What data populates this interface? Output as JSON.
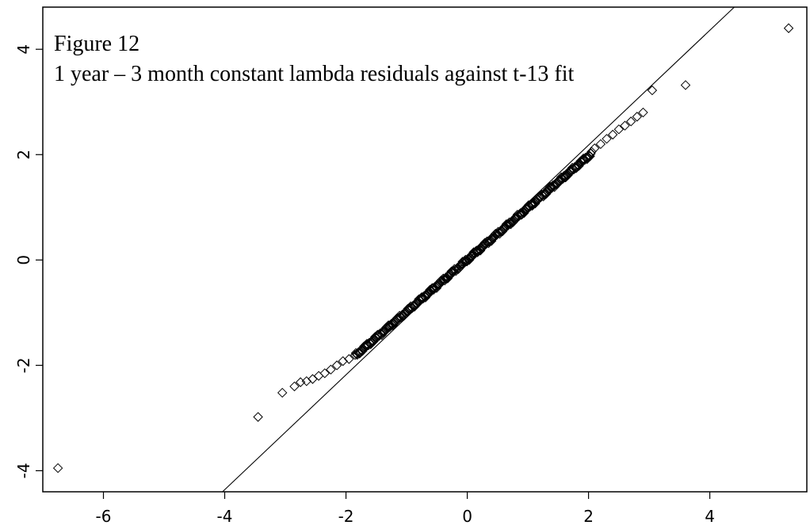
{
  "chart_data": {
    "type": "scatter",
    "title": "Figure 12",
    "subtitle": "1 year –  3 month constant lambda residuals against t-13 fit",
    "xlabel": "",
    "ylabel": "",
    "xlim": [
      -7.0,
      5.6
    ],
    "ylim": [
      -4.4,
      4.8
    ],
    "x_ticks": [
      -6,
      -4,
      -2,
      0,
      2,
      4
    ],
    "y_ticks": [
      -4,
      -2,
      0,
      2,
      4
    ],
    "x_tick_labels": [
      "-6",
      "-4",
      "-2",
      "0",
      "2",
      "4"
    ],
    "y_tick_labels": [
      "-4",
      "-2",
      "0",
      "2",
      "4"
    ],
    "grid": false,
    "marker": "open-diamond",
    "reference_line": {
      "slope": 1.09,
      "intercept": 0.0
    },
    "outliers": [
      [
        -6.75,
        -3.95
      ],
      [
        -3.45,
        -2.98
      ],
      [
        -3.05,
        -2.52
      ],
      [
        -2.85,
        -2.4
      ],
      [
        -2.75,
        -2.32
      ],
      [
        -2.65,
        -2.3
      ],
      [
        -2.55,
        -2.26
      ],
      [
        -2.45,
        -2.2
      ],
      [
        -2.35,
        -2.15
      ],
      [
        -2.25,
        -2.08
      ],
      [
        -2.15,
        -2.0
      ],
      [
        -2.05,
        -1.92
      ],
      [
        -1.95,
        -1.88
      ],
      [
        2.1,
        2.12
      ],
      [
        2.2,
        2.2
      ],
      [
        2.3,
        2.3
      ],
      [
        2.4,
        2.38
      ],
      [
        2.5,
        2.48
      ],
      [
        2.6,
        2.55
      ],
      [
        2.7,
        2.63
      ],
      [
        2.8,
        2.72
      ],
      [
        2.9,
        2.8
      ],
      [
        3.05,
        3.22
      ],
      [
        3.6,
        3.32
      ],
      [
        5.3,
        4.4
      ]
    ],
    "bulk": {
      "n": 320,
      "x_from": -1.85,
      "x_to": 2.05
    }
  }
}
